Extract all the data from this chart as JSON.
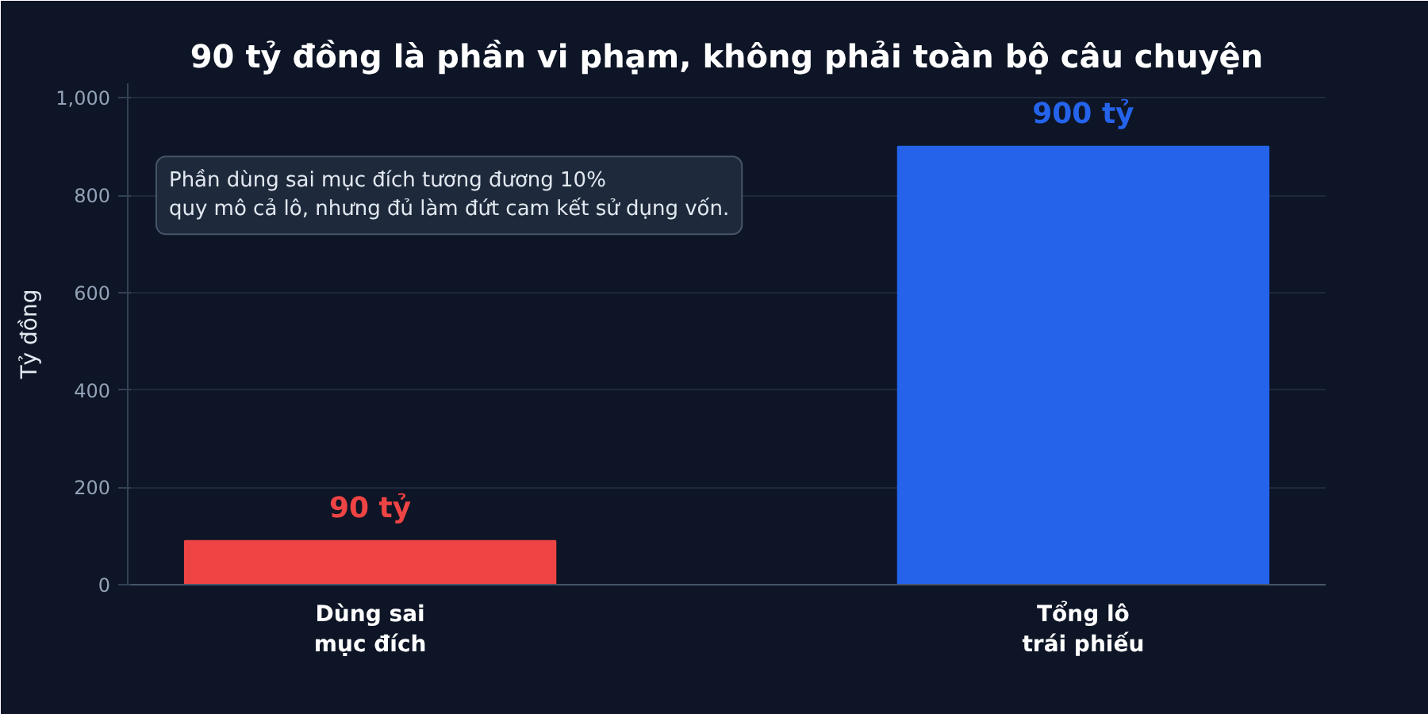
{
  "chart_data": {
    "type": "bar",
    "title": "90 tỷ đồng là phần vi phạm, không phải toàn bộ câu chuyện",
    "ylabel": "Tỷ đồng",
    "categories": [
      "Dùng sai\nmục đích",
      "Tổng lô\ntrái phiếu"
    ],
    "values": [
      90,
      900
    ],
    "colors": [
      "#ef4444",
      "#2563eb"
    ],
    "value_labels": [
      "90 tỷ",
      "900 tỷ"
    ],
    "ylim": [
      0,
      1030
    ],
    "yticks": [
      0,
      200,
      400,
      600,
      800,
      {
        "value": 1000,
        "label": "1,000"
      }
    ],
    "grid": "y",
    "annotations": [
      "Phần dùng sai mục đích tương đương 10%\nquy mô cả lô, nhưng đủ làm đứt cam kết sử dụng vốn."
    ]
  }
}
